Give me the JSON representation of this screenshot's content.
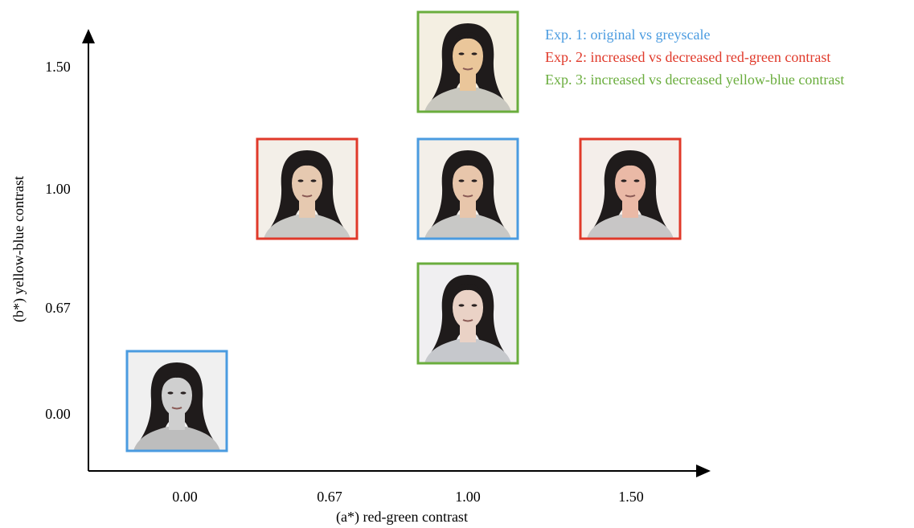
{
  "axes": {
    "x_label": "(a*) red-green contrast",
    "y_label": "(b*) yellow-blue contrast",
    "x_ticks": [
      "0.00",
      "0.67",
      "1.00",
      "1.50"
    ],
    "y_ticks": [
      "1.50",
      "1.00",
      "0.67",
      "0.00"
    ]
  },
  "legend": [
    {
      "label": "Exp. 1: original vs greyscale",
      "color": "#4a9be0"
    },
    {
      "label": "Exp. 2: increased vs decreased red-green contrast",
      "color": "#e0392a"
    },
    {
      "label": "Exp. 3: increased vs decreased yellow-blue contrast",
      "color": "#6aad3d"
    }
  ]
}
